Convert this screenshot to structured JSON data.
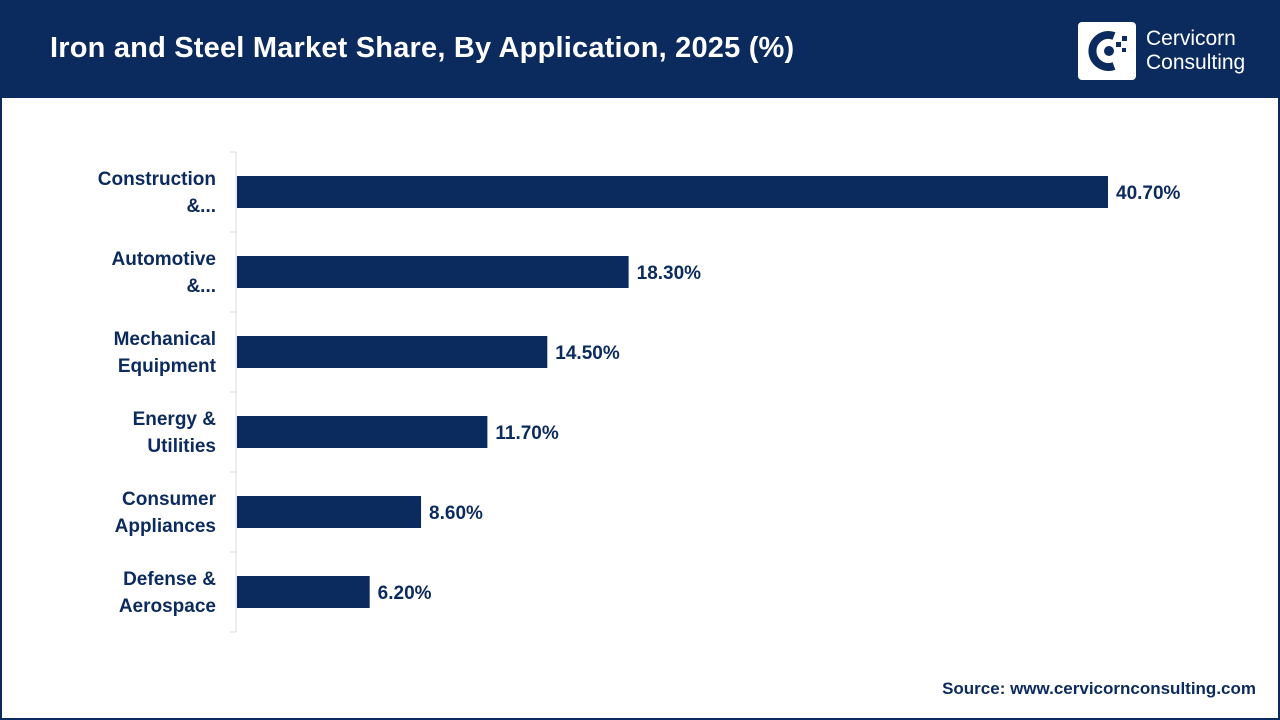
{
  "header": {
    "title": "Iron and Steel Market Share, By Application, 2025 (%)",
    "logo_line1": "Cervicorn",
    "logo_line2": "Consulting",
    "logo_icon": "cervicorn-logo-icon"
  },
  "colors": {
    "header_bg": "#0b2a5e",
    "bar": "#0b2a5e",
    "text": "#0b2a5e"
  },
  "chart_data": {
    "type": "bar",
    "orientation": "horizontal",
    "title": "Iron and Steel Market Share, By Application, 2025 (%)",
    "categories": [
      [
        "Construction",
        "&..."
      ],
      [
        "Automotive",
        "&..."
      ],
      [
        "Mechanical",
        "Equipment"
      ],
      [
        "Energy &",
        "Utilities"
      ],
      [
        "Consumer",
        "Appliances"
      ],
      [
        "Defense &",
        "Aerospace"
      ]
    ],
    "values": [
      40.7,
      18.3,
      14.5,
      11.7,
      8.6,
      6.2
    ],
    "value_labels": [
      "40.70%",
      "18.30%",
      "14.50%",
      "11.70%",
      "8.60%",
      "6.20%"
    ],
    "xlim": [
      0,
      41
    ],
    "grid": false,
    "legend": "none"
  },
  "source": "Source: www.cervicornconsulting.com"
}
